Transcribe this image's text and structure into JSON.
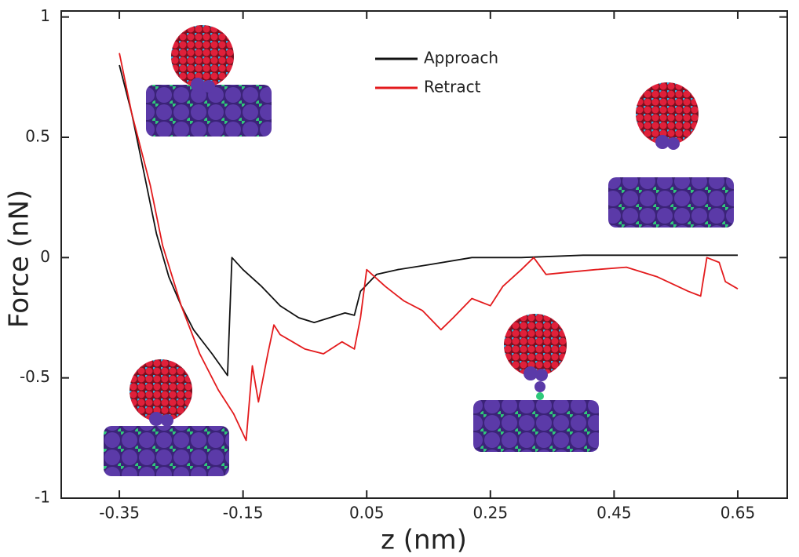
{
  "chart_data": {
    "type": "line",
    "xlabel": "z   (nm)",
    "ylabel": "Force (nN)",
    "xlim": [
      -0.444,
      0.73
    ],
    "ylim": [
      -1,
      1.025
    ],
    "xticks": [
      -0.35,
      -0.15,
      0.05,
      0.25,
      0.45,
      0.65
    ],
    "yticks": [
      -1,
      -0.5,
      0,
      0.5,
      1
    ],
    "legend": "upper center",
    "series": [
      {
        "name": "Approach",
        "color": "#111111",
        "x": [
          -0.35,
          -0.33,
          -0.31,
          -0.29,
          -0.27,
          -0.25,
          -0.23,
          -0.2,
          -0.175,
          -0.168,
          -0.15,
          -0.12,
          -0.09,
          -0.06,
          -0.035,
          -0.01,
          0.015,
          0.03,
          0.04,
          0.066,
          0.1,
          0.15,
          0.22,
          0.3,
          0.4,
          0.5,
          0.6,
          0.65
        ],
        "values": [
          0.8,
          0.6,
          0.35,
          0.1,
          -0.08,
          -0.2,
          -0.3,
          -0.4,
          -0.49,
          0.0,
          -0.05,
          -0.12,
          -0.2,
          -0.25,
          -0.27,
          -0.25,
          -0.23,
          -0.24,
          -0.14,
          -0.07,
          -0.05,
          -0.03,
          0.0,
          0.0,
          0.01,
          0.01,
          0.01,
          0.01
        ]
      },
      {
        "name": "Retract",
        "color": "#e31a1c",
        "x": [
          -0.35,
          -0.33,
          -0.3,
          -0.28,
          -0.25,
          -0.22,
          -0.19,
          -0.165,
          -0.145,
          -0.135,
          -0.125,
          -0.11,
          -0.1,
          -0.09,
          -0.07,
          -0.05,
          -0.02,
          0.01,
          0.03,
          0.04,
          0.05,
          0.08,
          0.11,
          0.14,
          0.17,
          0.19,
          0.22,
          0.25,
          0.27,
          0.3,
          0.32,
          0.34,
          0.38,
          0.42,
          0.47,
          0.52,
          0.57,
          0.59,
          0.6,
          0.62,
          0.63,
          0.65
        ],
        "values": [
          0.85,
          0.6,
          0.3,
          0.05,
          -0.2,
          -0.4,
          -0.55,
          -0.65,
          -0.76,
          -0.45,
          -0.6,
          -0.4,
          -0.28,
          -0.32,
          -0.35,
          -0.38,
          -0.4,
          -0.35,
          -0.38,
          -0.25,
          -0.05,
          -0.12,
          -0.18,
          -0.22,
          -0.3,
          -0.25,
          -0.17,
          -0.2,
          -0.12,
          -0.05,
          0.0,
          -0.07,
          -0.06,
          -0.05,
          -0.04,
          -0.08,
          -0.14,
          -0.16,
          0.0,
          -0.02,
          -0.1,
          -0.13
        ]
      }
    ]
  }
}
